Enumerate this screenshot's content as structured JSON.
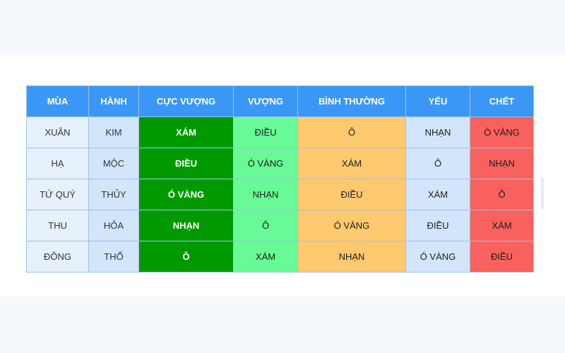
{
  "table": {
    "headers": [
      "MÙA",
      "HÀNH",
      "CỰC VƯỢNG",
      "VƯỢNG",
      "BÌNH THƯỜNG",
      "YẾU",
      "CHẾT"
    ],
    "rows": [
      [
        "XUÂN",
        "KIM",
        "XÁM",
        "ĐIỀU",
        "Ô",
        "NHẠN",
        "Ó VÀNG"
      ],
      [
        "HẠ",
        "MỘC",
        "ĐIỀU",
        "Ó VÀNG",
        "XÁM",
        "Ô",
        "NHẠN"
      ],
      [
        "TỨ QUÝ",
        "THỦY",
        "Ó VÀNG",
        "NHẠN",
        "ĐIỀU",
        "XÁM",
        "Ô"
      ],
      [
        "THU",
        "HỎA",
        "NHẠN",
        "Ô",
        "Ó VÀNG",
        "ĐIỀU",
        "XÁM"
      ],
      [
        "ĐÔNG",
        "THỔ",
        "Ô",
        "XÁM",
        "NHẠN",
        "Ó VÀNG",
        "ĐIỀU"
      ]
    ]
  },
  "colors": {
    "header": "#3b97f5",
    "cuc_vuong": "#009a00",
    "vuong": "#67fa96",
    "binh_thuong": "#fec96f",
    "yeu": "#d2e5fa",
    "chet": "#f8615e"
  }
}
